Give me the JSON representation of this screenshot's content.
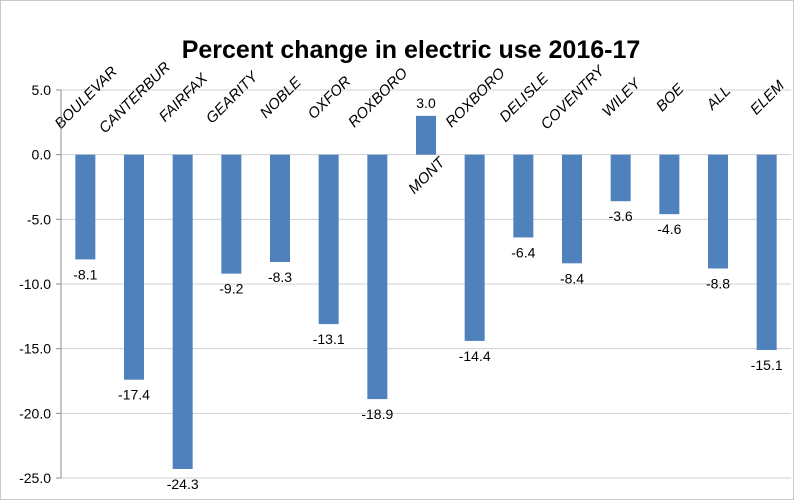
{
  "chart_data": {
    "type": "bar",
    "title": "Percent change in electric use 2016-17",
    "categories": [
      "BOULEVAR",
      "CANTERBUR",
      "FAIRFAX",
      "GEARITY",
      "NOBLE",
      "OXFOR",
      "ROXBORO",
      "MONT",
      "ROXBORO",
      "DELISLE",
      "COVENTRY",
      "WILEY",
      "BOE",
      "ALL",
      "ELEM"
    ],
    "values": [
      -8.1,
      -17.4,
      -24.3,
      -9.2,
      -8.3,
      -13.1,
      -18.9,
      3.0,
      -14.4,
      -6.4,
      -8.4,
      -3.6,
      -4.6,
      -8.8,
      -15.1
    ],
    "value_labels": [
      "-8.1",
      "-17.4",
      "-24.3",
      "-9.2",
      "-8.3",
      "-13.1",
      "-18.9",
      "3.0",
      "-14.4",
      "-6.4",
      "-8.4",
      "-3.6",
      "-4.6",
      "-8.8",
      "-15.1"
    ],
    "y_ticks": [
      5.0,
      0.0,
      -5.0,
      -10.0,
      -15.0,
      -20.0,
      -25.0
    ],
    "y_tick_labels": [
      "5.0",
      "0.0",
      "-5.0",
      "-10.0",
      "-15.0",
      "-20.0",
      "-25.0"
    ],
    "ylim": [
      -25,
      5
    ],
    "xlabel": "",
    "ylabel": "",
    "grid": true,
    "legend": "none",
    "bar_color": "#4f81bd"
  }
}
